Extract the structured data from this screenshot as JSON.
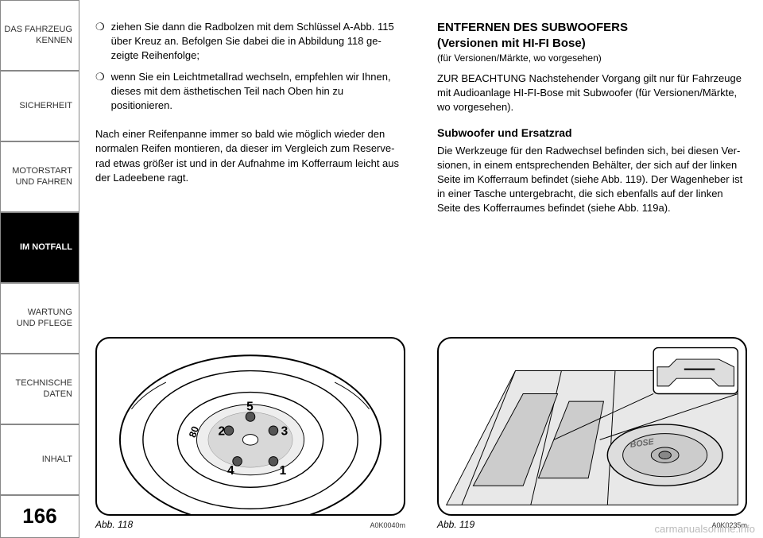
{
  "sidebar": {
    "items": [
      {
        "label": "DAS FAHRZEUG\nKENNEN",
        "active": false
      },
      {
        "label": "SICHERHEIT",
        "active": false
      },
      {
        "label": "MOTORSTART\nUND FAHREN",
        "active": false
      },
      {
        "label": "IM NOTFALL",
        "active": true
      },
      {
        "label": "WARTUNG\nUND PFLEGE",
        "active": false
      },
      {
        "label": "TECHNISCHE\nDATEN",
        "active": false
      },
      {
        "label": "INHALT",
        "active": false
      }
    ],
    "page_number": "166"
  },
  "left_col": {
    "bullets": [
      "ziehen Sie dann die Radbolzen mit dem Schlüssel A-Abb. 115 über Kreuz an. Befolgen Sie dabei die in Abbildung 118 ge­zeigte Reihenfolge;",
      "wenn Sie ein Leichtmetallrad wechseln, empfehlen wir Ihnen, dieses mit dem ästhetischen Teil nach Oben hin zu positionieren."
    ],
    "para": "Nach einer Reifenpanne immer so bald wie möglich wieder den normalen Reifen montieren, da dieser im Vergleich zum Reserve­rad etwas größer ist und in der Aufnahme im Kofferraum leicht aus der Ladeebene ragt.",
    "figure": {
      "caption": "Abb. 118",
      "code": "A0K0040m",
      "bolt_labels": [
        "1",
        "2",
        "3",
        "4",
        "5"
      ],
      "extra_label": "80"
    }
  },
  "right_col": {
    "h1_line1": "ENTFERNEN DES SUBWOOFERS",
    "h1_line2": "(Versionen mit HI-FI Bose)",
    "sub": "(für Versionen/Märkte, wo vorgesehen)",
    "para1": "ZUR BEACHTUNG Nachstehender Vorgang gilt nur für Fahrzeuge mit Audioanlage HI-FI-Bose mit Subwoofer (für Versionen/Märkte, wo vorgesehen).",
    "section": "Subwoofer und Ersatzrad",
    "para2": "Die Werkzeuge für den Radwechsel befinden sich, bei diesen Ver­sionen, in einem entsprechenden Behälter, der sich auf der linken Seite im Kofferraum befindet (siehe Abb. 119). Der Wagenheber ist in einer Tasche untergebracht, die sich ebenfalls auf der linken Seite des Kofferraumes befindet (siehe Abb. 119a).",
    "figure": {
      "caption": "Abb. 119",
      "code": "A0K0235m"
    }
  },
  "watermark": "carmanualsonline.info",
  "colors": {
    "text": "#000000",
    "sidebar_border": "#888888",
    "active_bg": "#000000",
    "active_fg": "#ffffff",
    "watermark": "#bbbbbb",
    "figure_line": "#000000",
    "figure_fill_light": "#ffffff",
    "figure_fill_grey": "#d0d0d0",
    "figure_fill_dark": "#888888"
  }
}
